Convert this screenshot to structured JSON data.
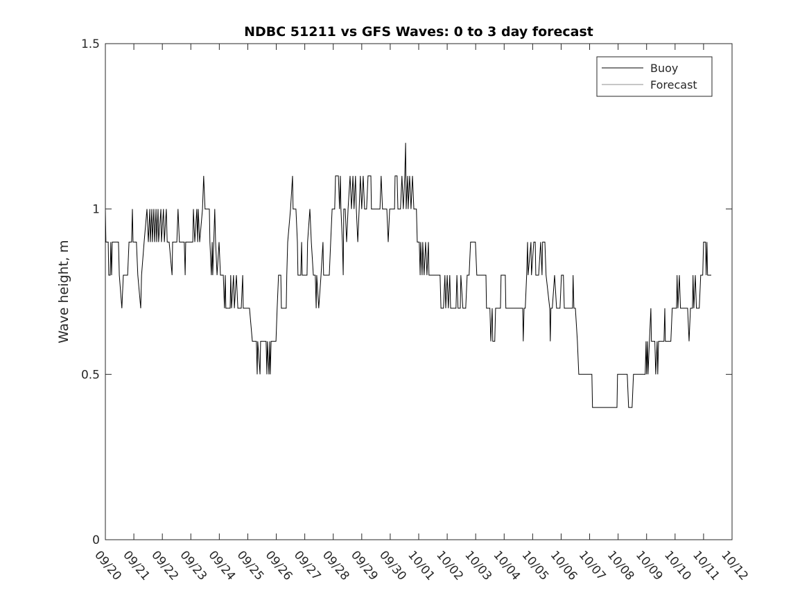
{
  "chart_data": {
    "type": "line",
    "title": "NDBC 51211 vs GFS Waves: 0 to 3 day forecast",
    "xlabel": "",
    "ylabel": "Wave height, m",
    "xlim": [
      0,
      22
    ],
    "ylim": [
      0,
      1.5
    ],
    "x_unit": "days since 09/20",
    "xticks": [
      0,
      1,
      2,
      3,
      4,
      5,
      6,
      7,
      8,
      9,
      10,
      11,
      12,
      13,
      14,
      15,
      16,
      17,
      18,
      19,
      20,
      21,
      22
    ],
    "xtick_labels": [
      "09/20",
      "09/21",
      "09/22",
      "09/23",
      "09/24",
      "09/25",
      "09/26",
      "09/27",
      "09/28",
      "09/29",
      "09/30",
      "10/01",
      "10/02",
      "10/03",
      "10/04",
      "10/05",
      "10/06",
      "10/07",
      "10/08",
      "10/09",
      "10/10",
      "10/11",
      "10/12"
    ],
    "yticks": [
      0,
      0.5,
      1,
      1.5
    ],
    "ytick_labels": [
      "0",
      "0.5",
      "1",
      "1.5"
    ],
    "grid": false,
    "legend_position": "top-right",
    "series": [
      {
        "name": "Buoy",
        "color": "#000000",
        "points": [
          [
            0,
            1.0
          ],
          [
            0.02,
            0.9
          ],
          [
            0.1,
            0.9
          ],
          [
            0.12,
            0.8
          ],
          [
            0.17,
            0.8
          ],
          [
            0.19,
            0.9
          ],
          [
            0.22,
            0.8
          ],
          [
            0.24,
            0.9
          ],
          [
            0.46,
            0.9
          ],
          [
            0.49,
            0.8
          ],
          [
            0.58,
            0.7
          ],
          [
            0.63,
            0.8
          ],
          [
            0.78,
            0.8
          ],
          [
            0.83,
            0.9
          ],
          [
            0.92,
            0.9
          ],
          [
            0.95,
            1.0
          ],
          [
            0.97,
            0.9
          ],
          [
            1.09,
            0.9
          ],
          [
            1.14,
            0.8
          ],
          [
            1.24,
            0.7
          ],
          [
            1.27,
            0.8
          ],
          [
            1.36,
            0.9
          ],
          [
            1.46,
            1.0
          ],
          [
            1.51,
            0.9
          ],
          [
            1.56,
            1.0
          ],
          [
            1.58,
            0.9
          ],
          [
            1.63,
            1.0
          ],
          [
            1.65,
            0.9
          ],
          [
            1.7,
            1.0
          ],
          [
            1.73,
            0.9
          ],
          [
            1.78,
            1.0
          ],
          [
            1.8,
            0.9
          ],
          [
            1.85,
            1.0
          ],
          [
            1.87,
            0.9
          ],
          [
            1.95,
            1.0
          ],
          [
            1.97,
            0.9
          ],
          [
            2.04,
            1.0
          ],
          [
            2.07,
            0.9
          ],
          [
            2.14,
            1.0
          ],
          [
            2.17,
            0.9
          ],
          [
            2.24,
            0.9
          ],
          [
            2.34,
            0.8
          ],
          [
            2.36,
            0.9
          ],
          [
            2.51,
            0.9
          ],
          [
            2.55,
            1.0
          ],
          [
            2.6,
            0.9
          ],
          [
            2.77,
            0.9
          ],
          [
            2.8,
            0.8
          ],
          [
            2.82,
            0.9
          ],
          [
            3.07,
            0.9
          ],
          [
            3.09,
            1.0
          ],
          [
            3.14,
            0.9
          ],
          [
            3.21,
            1.0
          ],
          [
            3.24,
            0.9
          ],
          [
            3.26,
            1.0
          ],
          [
            3.31,
            0.9
          ],
          [
            3.41,
            1.0
          ],
          [
            3.45,
            1.1
          ],
          [
            3.5,
            1.0
          ],
          [
            3.65,
            1.0
          ],
          [
            3.67,
            0.9
          ],
          [
            3.72,
            0.8
          ],
          [
            3.75,
            0.9
          ],
          [
            3.77,
            0.8
          ],
          [
            3.84,
            1.0
          ],
          [
            3.87,
            0.9
          ],
          [
            3.92,
            0.8
          ],
          [
            3.99,
            0.9
          ],
          [
            4.04,
            0.8
          ],
          [
            4.14,
            0.8
          ],
          [
            4.18,
            0.7
          ],
          [
            4.21,
            0.8
          ],
          [
            4.23,
            0.7
          ],
          [
            4.38,
            0.7
          ],
          [
            4.4,
            0.8
          ],
          [
            4.43,
            0.7
          ],
          [
            4.5,
            0.8
          ],
          [
            4.53,
            0.7
          ],
          [
            4.6,
            0.8
          ],
          [
            4.65,
            0.7
          ],
          [
            4.77,
            0.7
          ],
          [
            4.82,
            0.8
          ],
          [
            4.84,
            0.7
          ],
          [
            5.06,
            0.7
          ],
          [
            5.16,
            0.6
          ],
          [
            5.3,
            0.6
          ],
          [
            5.33,
            0.5
          ],
          [
            5.35,
            0.6
          ],
          [
            5.43,
            0.5
          ],
          [
            5.45,
            0.6
          ],
          [
            5.64,
            0.6
          ],
          [
            5.67,
            0.5
          ],
          [
            5.69,
            0.6
          ],
          [
            5.74,
            0.5
          ],
          [
            5.77,
            0.6
          ],
          [
            5.79,
            0.5
          ],
          [
            5.82,
            0.6
          ],
          [
            5.99,
            0.6
          ],
          [
            6.03,
            0.7
          ],
          [
            6.08,
            0.8
          ],
          [
            6.16,
            0.8
          ],
          [
            6.18,
            0.7
          ],
          [
            6.35,
            0.7
          ],
          [
            6.37,
            0.8
          ],
          [
            6.4,
            0.9
          ],
          [
            6.5,
            1.0
          ],
          [
            6.57,
            1.1
          ],
          [
            6.59,
            1.0
          ],
          [
            6.69,
            1.0
          ],
          [
            6.74,
            0.9
          ],
          [
            6.76,
            0.8
          ],
          [
            6.86,
            0.8
          ],
          [
            6.89,
            0.9
          ],
          [
            6.91,
            0.8
          ],
          [
            7.08,
            0.8
          ],
          [
            7.1,
            0.9
          ],
          [
            7.18,
            1.0
          ],
          [
            7.23,
            0.9
          ],
          [
            7.3,
            0.8
          ],
          [
            7.37,
            0.8
          ],
          [
            7.4,
            0.7
          ],
          [
            7.42,
            0.8
          ],
          [
            7.49,
            0.7
          ],
          [
            7.57,
            0.8
          ],
          [
            7.64,
            0.9
          ],
          [
            7.66,
            0.8
          ],
          [
            7.86,
            0.8
          ],
          [
            7.91,
            0.9
          ],
          [
            7.96,
            1.0
          ],
          [
            8.05,
            1.0
          ],
          [
            8.08,
            1.1
          ],
          [
            8.18,
            1.1
          ],
          [
            8.22,
            1.0
          ],
          [
            8.25,
            1.1
          ],
          [
            8.27,
            1.0
          ],
          [
            8.32,
            0.9
          ],
          [
            8.35,
            0.8
          ],
          [
            8.37,
            1.0
          ],
          [
            8.42,
            1.0
          ],
          [
            8.47,
            0.9
          ],
          [
            8.52,
            1.0
          ],
          [
            8.59,
            1.1
          ],
          [
            8.64,
            1.0
          ],
          [
            8.69,
            1.1
          ],
          [
            8.73,
            1.0
          ],
          [
            8.78,
            1.1
          ],
          [
            8.81,
            1.0
          ],
          [
            8.86,
            0.9
          ],
          [
            8.91,
            1.0
          ],
          [
            8.95,
            1.1
          ],
          [
            9.0,
            1.0
          ],
          [
            9.05,
            1.1
          ],
          [
            9.1,
            1.0
          ],
          [
            9.17,
            1.0
          ],
          [
            9.22,
            1.1
          ],
          [
            9.32,
            1.1
          ],
          [
            9.34,
            1.0
          ],
          [
            9.64,
            1.0
          ],
          [
            9.68,
            1.1
          ],
          [
            9.73,
            1.0
          ],
          [
            9.88,
            1.0
          ],
          [
            9.93,
            0.9
          ],
          [
            9.98,
            1.0
          ],
          [
            10.15,
            1.0
          ],
          [
            10.17,
            1.1
          ],
          [
            10.24,
            1.1
          ],
          [
            10.27,
            1.0
          ],
          [
            10.36,
            1.0
          ],
          [
            10.41,
            1.1
          ],
          [
            10.46,
            1.0
          ],
          [
            10.51,
            1.1
          ],
          [
            10.54,
            1.2
          ],
          [
            10.56,
            1.0
          ],
          [
            10.61,
            1.1
          ],
          [
            10.63,
            1.0
          ],
          [
            10.68,
            1.1
          ],
          [
            10.73,
            1.0
          ],
          [
            10.78,
            1.1
          ],
          [
            10.83,
            1.0
          ],
          [
            10.92,
            1.0
          ],
          [
            10.95,
            0.9
          ],
          [
            11.02,
            0.9
          ],
          [
            11.05,
            0.8
          ],
          [
            11.07,
            0.9
          ],
          [
            11.12,
            0.8
          ],
          [
            11.14,
            0.9
          ],
          [
            11.19,
            0.8
          ],
          [
            11.24,
            0.9
          ],
          [
            11.29,
            0.8
          ],
          [
            11.34,
            0.9
          ],
          [
            11.36,
            0.8
          ],
          [
            11.48,
            0.8
          ],
          [
            11.75,
            0.8
          ],
          [
            11.78,
            0.7
          ],
          [
            11.87,
            0.7
          ],
          [
            11.92,
            0.8
          ],
          [
            11.95,
            0.7
          ],
          [
            12.0,
            0.8
          ],
          [
            12.04,
            0.7
          ],
          [
            12.09,
            0.8
          ],
          [
            12.12,
            0.7
          ],
          [
            12.31,
            0.7
          ],
          [
            12.34,
            0.8
          ],
          [
            12.38,
            0.7
          ],
          [
            12.46,
            0.7
          ],
          [
            12.48,
            0.8
          ],
          [
            12.55,
            0.7
          ],
          [
            12.65,
            0.7
          ],
          [
            12.7,
            0.8
          ],
          [
            12.77,
            0.8
          ],
          [
            12.82,
            0.9
          ],
          [
            12.99,
            0.9
          ],
          [
            13.04,
            0.8
          ],
          [
            13.11,
            0.8
          ],
          [
            13.36,
            0.8
          ],
          [
            13.38,
            0.7
          ],
          [
            13.5,
            0.7
          ],
          [
            13.53,
            0.6
          ],
          [
            13.58,
            0.7
          ],
          [
            13.6,
            0.6
          ],
          [
            13.67,
            0.6
          ],
          [
            13.7,
            0.7
          ],
          [
            13.87,
            0.7
          ],
          [
            13.89,
            0.8
          ],
          [
            14.04,
            0.8
          ],
          [
            14.06,
            0.7
          ],
          [
            14.36,
            0.7
          ],
          [
            14.65,
            0.7
          ],
          [
            14.67,
            0.6
          ],
          [
            14.7,
            0.7
          ],
          [
            14.74,
            0.7
          ],
          [
            14.79,
            0.8
          ],
          [
            14.82,
            0.9
          ],
          [
            14.84,
            0.8
          ],
          [
            14.94,
            0.9
          ],
          [
            14.96,
            0.8
          ],
          [
            15.04,
            0.9
          ],
          [
            15.09,
            0.9
          ],
          [
            15.11,
            0.8
          ],
          [
            15.21,
            0.8
          ],
          [
            15.28,
            0.9
          ],
          [
            15.33,
            0.8
          ],
          [
            15.35,
            0.9
          ],
          [
            15.43,
            0.9
          ],
          [
            15.47,
            0.8
          ],
          [
            15.6,
            0.7
          ],
          [
            15.62,
            0.6
          ],
          [
            15.64,
            0.7
          ],
          [
            15.69,
            0.7
          ],
          [
            15.77,
            0.8
          ],
          [
            15.84,
            0.7
          ],
          [
            15.96,
            0.7
          ],
          [
            16.01,
            0.8
          ],
          [
            16.08,
            0.8
          ],
          [
            16.11,
            0.7
          ],
          [
            16.4,
            0.7
          ],
          [
            16.42,
            0.8
          ],
          [
            16.45,
            0.7
          ],
          [
            16.5,
            0.7
          ],
          [
            16.57,
            0.6
          ],
          [
            16.62,
            0.5
          ],
          [
            17.08,
            0.5
          ],
          [
            17.1,
            0.4
          ],
          [
            17.96,
            0.4
          ],
          [
            17.98,
            0.5
          ],
          [
            18.32,
            0.5
          ],
          [
            18.37,
            0.4
          ],
          [
            18.49,
            0.4
          ],
          [
            18.54,
            0.5
          ],
          [
            18.95,
            0.5
          ],
          [
            18.98,
            0.6
          ],
          [
            19.0,
            0.5
          ],
          [
            19.03,
            0.6
          ],
          [
            19.05,
            0.5
          ],
          [
            19.1,
            0.6
          ],
          [
            19.15,
            0.7
          ],
          [
            19.17,
            0.6
          ],
          [
            19.29,
            0.6
          ],
          [
            19.32,
            0.5
          ],
          [
            19.37,
            0.6
          ],
          [
            19.39,
            0.5
          ],
          [
            19.42,
            0.6
          ],
          [
            19.61,
            0.6
          ],
          [
            19.64,
            0.7
          ],
          [
            19.66,
            0.6
          ],
          [
            19.85,
            0.6
          ],
          [
            19.9,
            0.7
          ],
          [
            20.05,
            0.7
          ],
          [
            20.07,
            0.8
          ],
          [
            20.1,
            0.7
          ],
          [
            20.15,
            0.8
          ],
          [
            20.19,
            0.7
          ],
          [
            20.44,
            0.7
          ],
          [
            20.49,
            0.6
          ],
          [
            20.54,
            0.7
          ],
          [
            20.61,
            0.7
          ],
          [
            20.63,
            0.8
          ],
          [
            20.66,
            0.7
          ],
          [
            20.71,
            0.8
          ],
          [
            20.75,
            0.7
          ],
          [
            20.85,
            0.7
          ],
          [
            20.9,
            0.8
          ],
          [
            20.97,
            0.8
          ],
          [
            21.0,
            0.9
          ],
          [
            21.07,
            0.9
          ],
          [
            21.09,
            0.8
          ],
          [
            21.12,
            0.9
          ],
          [
            21.14,
            0.8
          ],
          [
            21.27,
            0.8
          ]
        ]
      },
      {
        "name": "Forecast",
        "color": "#8c8c8c",
        "points": []
      }
    ]
  }
}
